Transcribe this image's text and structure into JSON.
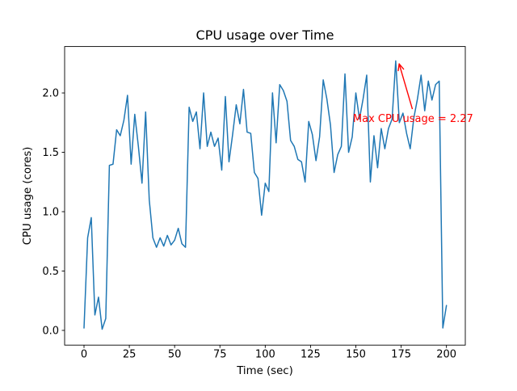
{
  "figure": {
    "background": "#ffffff",
    "text_color": "#000000",
    "spine_color": "#000000"
  },
  "chart_data": {
    "type": "line",
    "title": "CPU usage over Time",
    "xlabel": "Time (sec)",
    "ylabel": "CPU usage (cores)",
    "line_color": "#1f77b4",
    "legend": null,
    "grid": false,
    "xlim": [
      -10.7,
      210.4
    ],
    "ylim": [
      -0.124,
      2.391
    ],
    "x_ticks": [
      0,
      25,
      50,
      75,
      100,
      125,
      150,
      175,
      200
    ],
    "x_tick_labels": [
      "0",
      "25",
      "50",
      "75",
      "100",
      "125",
      "150",
      "175",
      "200"
    ],
    "y_ticks": [
      0,
      0.5,
      1.0,
      1.5,
      2.0
    ],
    "y_tick_labels": [
      "0.0",
      "0.5",
      "1.0",
      "1.5",
      "2.0"
    ],
    "x": [
      0,
      2,
      4,
      6,
      8,
      10,
      12,
      14,
      16,
      18,
      20,
      22,
      24,
      26,
      28,
      30,
      32,
      34,
      36,
      38,
      40,
      42,
      44,
      46,
      48,
      50,
      52,
      54,
      56,
      58,
      60,
      62,
      64,
      66,
      68,
      70,
      72,
      74,
      76,
      78,
      80,
      82,
      84,
      86,
      88,
      90,
      92,
      94,
      96,
      98,
      100,
      102,
      104,
      106,
      108,
      110,
      112,
      114,
      116,
      118,
      120,
      122,
      124,
      126,
      128,
      130,
      132,
      134,
      136,
      138,
      140,
      142,
      144,
      146,
      148,
      150,
      152,
      154,
      156,
      158,
      160,
      162,
      164,
      166,
      168,
      170,
      172,
      174,
      176,
      178,
      180,
      182,
      184,
      186,
      188,
      190,
      192,
      194,
      196,
      198,
      200
    ],
    "y": [
      0.02,
      0.78,
      0.95,
      0.13,
      0.28,
      0.01,
      0.1,
      1.39,
      1.4,
      1.69,
      1.64,
      1.77,
      1.98,
      1.4,
      1.82,
      1.55,
      1.24,
      1.84,
      1.1,
      0.78,
      0.7,
      0.78,
      0.71,
      0.8,
      0.72,
      0.76,
      0.86,
      0.73,
      0.7,
      1.88,
      1.76,
      1.84,
      1.53,
      2.0,
      1.55,
      1.67,
      1.55,
      1.62,
      1.35,
      1.97,
      1.42,
      1.65,
      1.9,
      1.74,
      2.03,
      1.67,
      1.66,
      1.33,
      1.28,
      0.97,
      1.24,
      1.17,
      2.0,
      1.58,
      2.07,
      2.02,
      1.93,
      1.6,
      1.55,
      1.44,
      1.42,
      1.25,
      1.76,
      1.65,
      1.43,
      1.63,
      2.11,
      1.95,
      1.73,
      1.33,
      1.48,
      1.55,
      2.16,
      1.5,
      1.63,
      2.0,
      1.78,
      1.95,
      2.15,
      1.25,
      1.64,
      1.37,
      1.7,
      1.53,
      1.7,
      1.78,
      2.27,
      1.75,
      1.83,
      1.66,
      1.53,
      1.79,
      1.95,
      2.15,
      1.85,
      2.1,
      1.94,
      2.07,
      2.1,
      0.02,
      0.21
    ],
    "annotation": {
      "text": "Max CPU usage = 2.27",
      "color": "#ff0000",
      "point_xy": [
        173.9,
        2.245
      ],
      "arrow_from_xy": [
        181.2,
        1.864
      ],
      "text_xy": [
        148.4,
        1.755
      ]
    }
  }
}
